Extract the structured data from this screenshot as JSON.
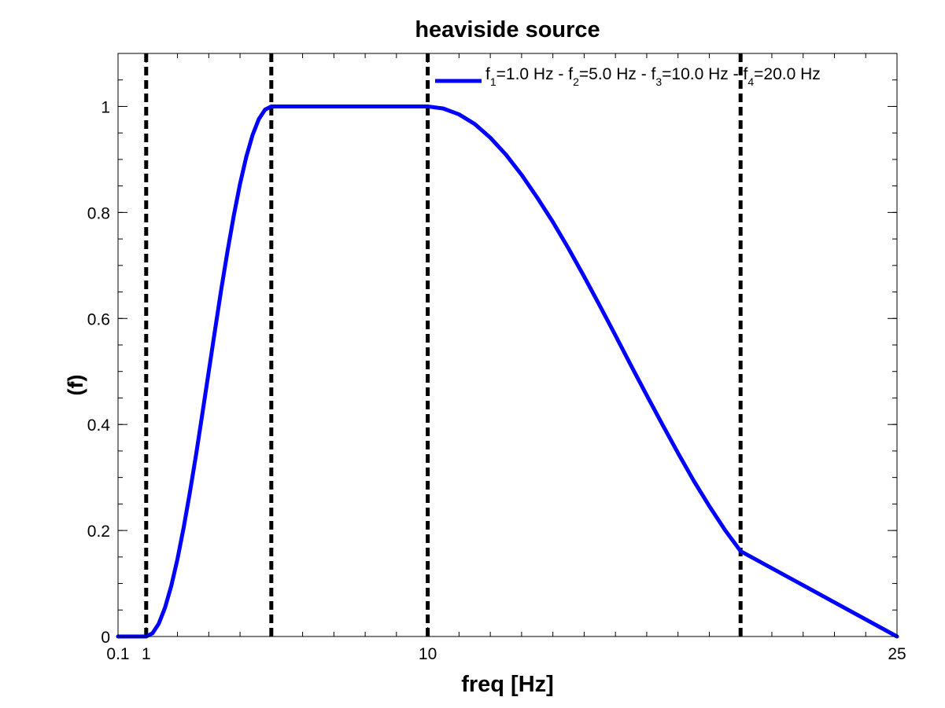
{
  "chart_data": {
    "type": "line",
    "title": "heaviside source",
    "xlabel": "freq [Hz]",
    "ylabel": "(f)",
    "ylabel_prefix": "f",
    "xlim": [
      0.1,
      25
    ],
    "ylim": [
      0,
      1.1
    ],
    "x_tick_labels": [
      {
        "value": 0.1,
        "label": "0.1"
      },
      {
        "value": 1,
        "label": "1"
      },
      {
        "value": 10,
        "label": "10"
      },
      {
        "value": 25,
        "label": "25"
      }
    ],
    "x_minor_ticks": [
      2,
      3,
      4,
      5,
      6,
      7,
      8,
      9,
      11,
      12,
      13,
      14,
      15,
      16,
      17,
      18,
      19,
      20,
      21,
      22,
      23,
      24
    ],
    "y_tick_labels": [
      {
        "value": 0,
        "label": "0"
      },
      {
        "value": 0.2,
        "label": "0.2"
      },
      {
        "value": 0.4,
        "label": "0.4"
      },
      {
        "value": 0.6,
        "label": "0.6"
      },
      {
        "value": 0.8,
        "label": "0.8"
      },
      {
        "value": 1,
        "label": "1"
      }
    ],
    "y_minor_step": 0.05,
    "grid": false,
    "legend": {
      "placement": "top-right",
      "parts": [
        {
          "text": "f",
          "sub": "1",
          "rest": "=1.0 Hz - "
        },
        {
          "text": "f",
          "sub": "2",
          "rest": "=5.0 Hz - "
        },
        {
          "text": "f",
          "sub": "3",
          "rest": "=10.0 Hz - "
        },
        {
          "text": "f",
          "sub": "4",
          "rest": "=20.0 Hz"
        }
      ]
    },
    "vertical_lines": [
      1.0,
      5.0,
      10.0,
      20.0
    ],
    "series": [
      {
        "color": "#0000ff",
        "x": [
          0.1,
          1.0,
          1.2,
          1.4,
          1.6,
          1.8,
          2.0,
          2.2,
          2.4,
          2.6,
          2.8,
          3.0,
          3.2,
          3.4,
          3.6,
          3.8,
          4.0,
          4.2,
          4.4,
          4.6,
          4.8,
          5.0,
          7.5,
          10.0,
          10.5,
          11.0,
          11.5,
          12.0,
          12.5,
          13.0,
          13.5,
          14.0,
          14.5,
          15.0,
          15.5,
          16.0,
          16.5,
          17.0,
          17.5,
          18.0,
          18.5,
          19.0,
          19.5,
          20.0,
          25.0
        ],
        "y": [
          0,
          0,
          0.006,
          0.024,
          0.054,
          0.095,
          0.146,
          0.206,
          0.273,
          0.345,
          0.422,
          0.5,
          0.578,
          0.655,
          0.727,
          0.794,
          0.854,
          0.905,
          0.946,
          0.976,
          0.994,
          1.0,
          1.0,
          1.0,
          0.996,
          0.985,
          0.967,
          0.941,
          0.909,
          0.871,
          0.828,
          0.782,
          0.732,
          0.679,
          0.624,
          0.568,
          0.511,
          0.455,
          0.4,
          0.346,
          0.294,
          0.246,
          0.201,
          0.161,
          0.0
        ]
      }
    ],
    "vline_color": "#000000"
  }
}
